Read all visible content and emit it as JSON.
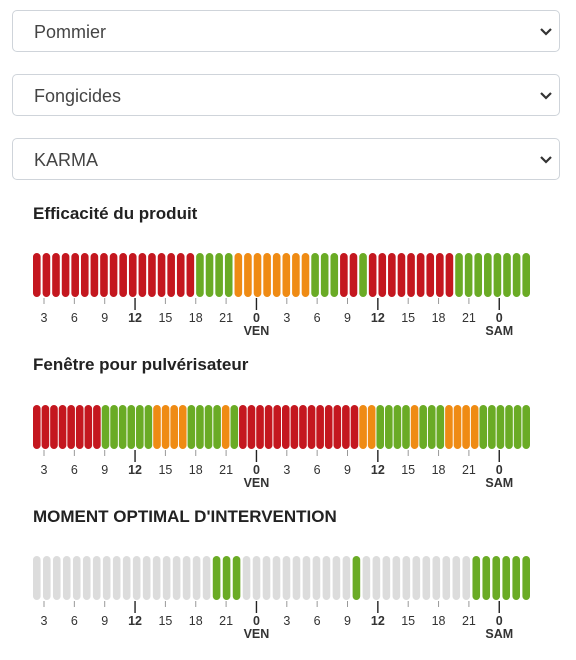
{
  "filters": {
    "crop": "Pommier",
    "category": "Fongicides",
    "product": "KARMA"
  },
  "colors": {
    "red": "#c4171f",
    "green": "#6aab25",
    "orange": "#ef8b14",
    "grey": "#dcdcdc"
  },
  "timeline": {
    "hour_ticks": [
      "3",
      "6",
      "9",
      "12",
      "15",
      "18",
      "21",
      "0",
      "3",
      "6",
      "9",
      "12",
      "15",
      "18",
      "21",
      "0"
    ],
    "bold_tick_indices": [
      3,
      7,
      11,
      15
    ],
    "day_labels": [
      {
        "tick_index": 7,
        "label": "VEN"
      },
      {
        "tick_index": 15,
        "label": "SAM"
      }
    ]
  },
  "sections": [
    {
      "title": "Efficacité du produit",
      "levels": "RRRRRRRRRRRRRRRRRGGGGOOOOOOOOGGGRRGRRRRRRRRRGGGGGGGG"
    },
    {
      "title": "Fenêtre pour pulvérisateur",
      "levels": "RRRRRRRRGGGGGGOOOOGGGGOGRRRRRRRRRRRRRROOGGGGOGGGOOOOGGGGGG"
    },
    {
      "title": "MOMENT OPTIMAL D'INTERVENTION",
      "levels": "LLLLLLLLLLLLLLLLLLGGGLLLLLLLLLLLGLLLLLLLLLLLGGGGGG"
    }
  ]
}
